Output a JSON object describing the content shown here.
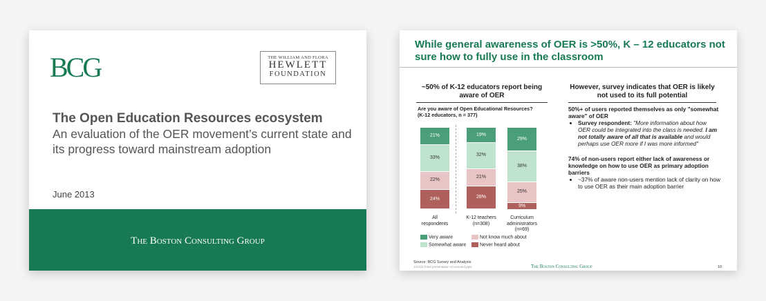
{
  "slide1": {
    "bcg_logo": "BCG",
    "hewlett_line1": "THE WILLIAM AND FLORA",
    "hewlett_line2": "HEWLETT",
    "hewlett_line3": "FOUNDATION",
    "title": "The Open Education Resources ecosystem",
    "subtitle": "An evaluation of the OER movement’s current state and its progress toward mainstream adoption",
    "date": "June 2013",
    "band_text": "The Boston Consulting Group"
  },
  "slide2": {
    "title": "While general awareness of OER is >50%, K – 12 educators not sure how to fully use in the classroom",
    "left_header": "~50% of K-12 educators report being aware of OER",
    "question_line1": "Are you aware of Open Educational Resources?",
    "question_line2": "(K-12 educators, n = 377)",
    "legend": {
      "very_aware": "Very aware",
      "somewhat_aware": "Somewhat aware",
      "not_know": "Not know much about",
      "never_heard": "Never heard about"
    },
    "colors": {
      "very_aware": "#4a9e78",
      "somewhat_aware": "#bfe3cc",
      "not_know": "#e9c4c4",
      "never_heard": "#b0605c"
    },
    "right_header": "However, survey indicates that OER is likely not used to its full potential",
    "finding1": "50%+ of users reported themselves as only \"somewhat aware\" of OER",
    "bullet1_label": "Survey respondent:",
    "bullet1_quote_a": "\"More information about how OER could be integrated into the class is needed.",
    "bullet1_quote_b": "I am not totally aware of all that is available",
    "bullet1_quote_c": "and would perhaps use OER more if I was more informed\"",
    "finding2": "74% of non-users report either lack of awareness or knowledge on how to use OER as primary adoption barriers",
    "bullet2": "~37% of aware non-users mention lack of clarity on how to use OER as their main adoption barrier",
    "source": "Source: BCG Survey and Analysis",
    "file": "121211 Final presentation vCorrected.pptx",
    "footer": "The Boston Consulting Group",
    "page": "10"
  },
  "chart_data": {
    "type": "bar",
    "stacked": true,
    "title": "Are you aware of Open Educational Resources?",
    "subtitle": "(K-12 educators, n = 377)",
    "categories": [
      "All respondents",
      "K-12 teachers (n=308)",
      "Curriculum administrators (n=69)"
    ],
    "series": [
      {
        "name": "Very aware",
        "values": [
          21,
          19,
          29
        ]
      },
      {
        "name": "Somewhat aware",
        "values": [
          33,
          32,
          38
        ]
      },
      {
        "name": "Not know much about",
        "values": [
          22,
          21,
          25
        ]
      },
      {
        "name": "Never heard about",
        "values": [
          24,
          28,
          9
        ]
      }
    ],
    "value_labels": [
      [
        "21%",
        "19%",
        "29%"
      ],
      [
        "33%",
        "32%",
        "38%"
      ],
      [
        "22%",
        "21%",
        "25%"
      ],
      [
        "24%",
        "28%",
        "9%"
      ]
    ],
    "category_labels": [
      [
        "All",
        "respondents"
      ],
      [
        "K-12 teachers",
        "(n=308)"
      ],
      [
        "Curriculum",
        "administrators",
        "(n=69)"
      ]
    ],
    "ylim": [
      0,
      100
    ]
  }
}
